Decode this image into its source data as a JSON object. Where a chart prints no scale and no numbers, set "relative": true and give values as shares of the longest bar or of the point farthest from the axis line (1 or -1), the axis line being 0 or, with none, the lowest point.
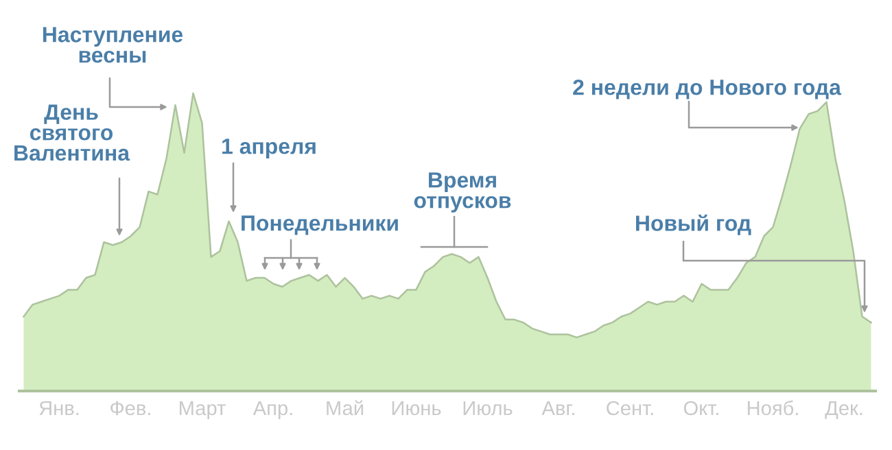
{
  "chart_data": {
    "type": "area",
    "relative": true,
    "color": "#d3ecc0",
    "categories": [
      null,
      null,
      null,
      null,
      "Янв.",
      null,
      null,
      null,
      null,
      null,
      null,
      null,
      "Фев.",
      null,
      null,
      null,
      null,
      null,
      null,
      null,
      "Март",
      null,
      null,
      null,
      null,
      null,
      null,
      null,
      "Апр.",
      null,
      null,
      null,
      null,
      null,
      null,
      null,
      "Май",
      null,
      null,
      null,
      null,
      null,
      null,
      null,
      "Июнь",
      null,
      null,
      null,
      null,
      null,
      null,
      null,
      "Июль",
      null,
      null,
      null,
      null,
      null,
      null,
      null,
      "Авг.",
      null,
      null,
      null,
      null,
      null,
      null,
      null,
      "Сент.",
      null,
      null,
      null,
      null,
      null,
      null,
      null,
      "Окт.",
      null,
      null,
      null,
      null,
      null,
      null,
      null,
      "Нояб.",
      null,
      null,
      null,
      null,
      null,
      null,
      null,
      "Дек.",
      null,
      null,
      null
    ],
    "values": [
      0.25,
      0.29,
      0.3,
      0.31,
      0.32,
      0.34,
      0.34,
      0.38,
      0.39,
      0.5,
      0.49,
      0.5,
      0.52,
      0.55,
      0.67,
      0.66,
      0.78,
      0.96,
      0.8,
      1.0,
      0.9,
      0.45,
      0.47,
      0.57,
      0.5,
      0.37,
      0.38,
      0.38,
      0.36,
      0.35,
      0.37,
      0.38,
      0.39,
      0.37,
      0.39,
      0.35,
      0.38,
      0.35,
      0.31,
      0.32,
      0.31,
      0.32,
      0.31,
      0.34,
      0.34,
      0.4,
      0.42,
      0.45,
      0.46,
      0.45,
      0.43,
      0.45,
      0.38,
      0.3,
      0.24,
      0.24,
      0.23,
      0.21,
      0.2,
      0.19,
      0.19,
      0.19,
      0.18,
      0.19,
      0.2,
      0.22,
      0.23,
      0.25,
      0.26,
      0.28,
      0.3,
      0.29,
      0.3,
      0.3,
      0.32,
      0.3,
      0.36,
      0.34,
      0.34,
      0.34,
      0.38,
      0.43,
      0.45,
      0.52,
      0.55,
      0.65,
      0.76,
      0.88,
      0.93,
      0.94,
      0.97,
      0.78,
      0.64,
      0.47,
      0.25,
      0.23
    ],
    "annotations": [
      "Наступление\nвесны",
      "День\nсвятого\nВалентина",
      "1 апреля",
      "Понедельники",
      "Время\nотпусков",
      "2 недели до Нового года",
      "Новый год"
    ]
  }
}
